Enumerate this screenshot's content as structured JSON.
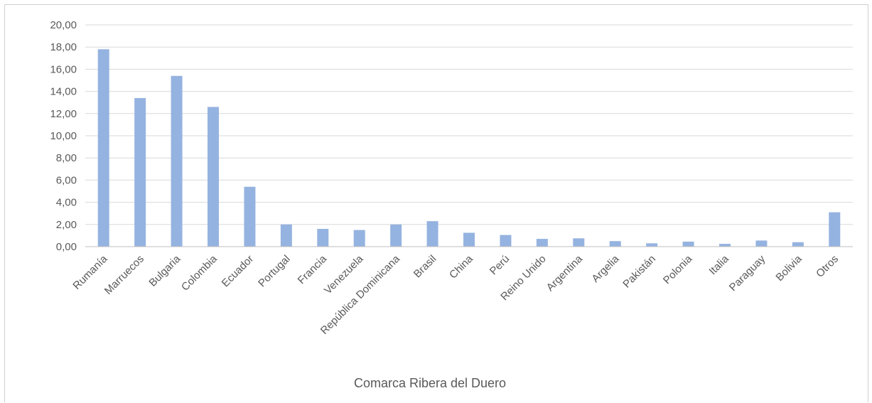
{
  "chart_data": {
    "type": "bar",
    "title": "",
    "xlabel": "Comarca Ribera del Duero",
    "ylabel": "",
    "ylim": [
      0,
      20
    ],
    "ytick_step": 2,
    "ytick_labels": [
      "0,00",
      "2,00",
      "4,00",
      "6,00",
      "8,00",
      "10,00",
      "12,00",
      "14,00",
      "16,00",
      "18,00",
      "20,00"
    ],
    "grid": true,
    "legend": "none",
    "categories": [
      "Rumanía",
      "Marruecos",
      "Bulgaria",
      "Colombia",
      "Ecuador",
      "Portugal",
      "Francia",
      "Venezuela",
      "República Dominicana",
      "Brasil",
      "China",
      "Perú",
      "Reino Unido",
      "Argentina",
      "Argelia",
      "Pakistán",
      "Polonia",
      "Italia",
      "Paraguay",
      "Bolivia",
      "Otros"
    ],
    "values": [
      17.8,
      13.4,
      15.4,
      12.6,
      5.4,
      2.0,
      1.6,
      1.5,
      2.0,
      2.3,
      1.25,
      1.05,
      0.7,
      0.75,
      0.5,
      0.3,
      0.45,
      0.25,
      0.55,
      0.4,
      3.1
    ],
    "colors": {
      "bar": "#95b3e0",
      "grid": "#d9d9d9",
      "axis": "#bfbfbf"
    }
  }
}
